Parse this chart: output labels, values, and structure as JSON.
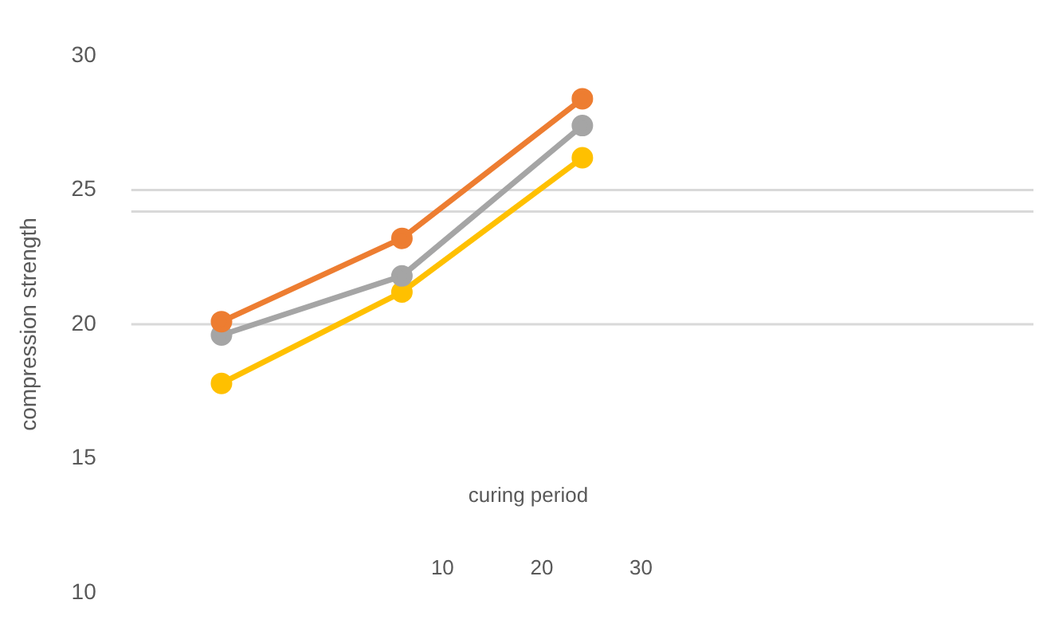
{
  "chart_data": {
    "type": "line",
    "xlabel": "curing period",
    "ylabel": "compression strength",
    "categories": [
      null,
      null,
      null,
      null,
      null
    ],
    "series": [
      {
        "color": "#ed7d31",
        "values": [
          20.1,
          23.2,
          28.4,
          null,
          null
        ]
      },
      {
        "color": "#a5a5a5",
        "values": [
          19.6,
          21.8,
          27.4,
          null,
          null
        ]
      },
      {
        "color": "#ffc000",
        "values": [
          17.8,
          21.2,
          26.2,
          null,
          null
        ]
      }
    ],
    "ylim": [
      10,
      30
    ],
    "yticks": [
      10,
      15,
      20,
      25,
      30
    ],
    "grid": false,
    "legend": false,
    "marker": "circle",
    "line_style": "solid",
    "tick_labels": "y",
    "ref_lines": [
      {
        "axis": "y",
        "value": 25,
        "color": "#d9d9d9"
      },
      {
        "axis": "y",
        "value": 24.2,
        "color": "#d9d9d9"
      },
      {
        "axis": "y",
        "value": 20,
        "color": "#d9d9d9"
      }
    ],
    "annotations": [
      "10",
      "20",
      "30"
    ]
  }
}
